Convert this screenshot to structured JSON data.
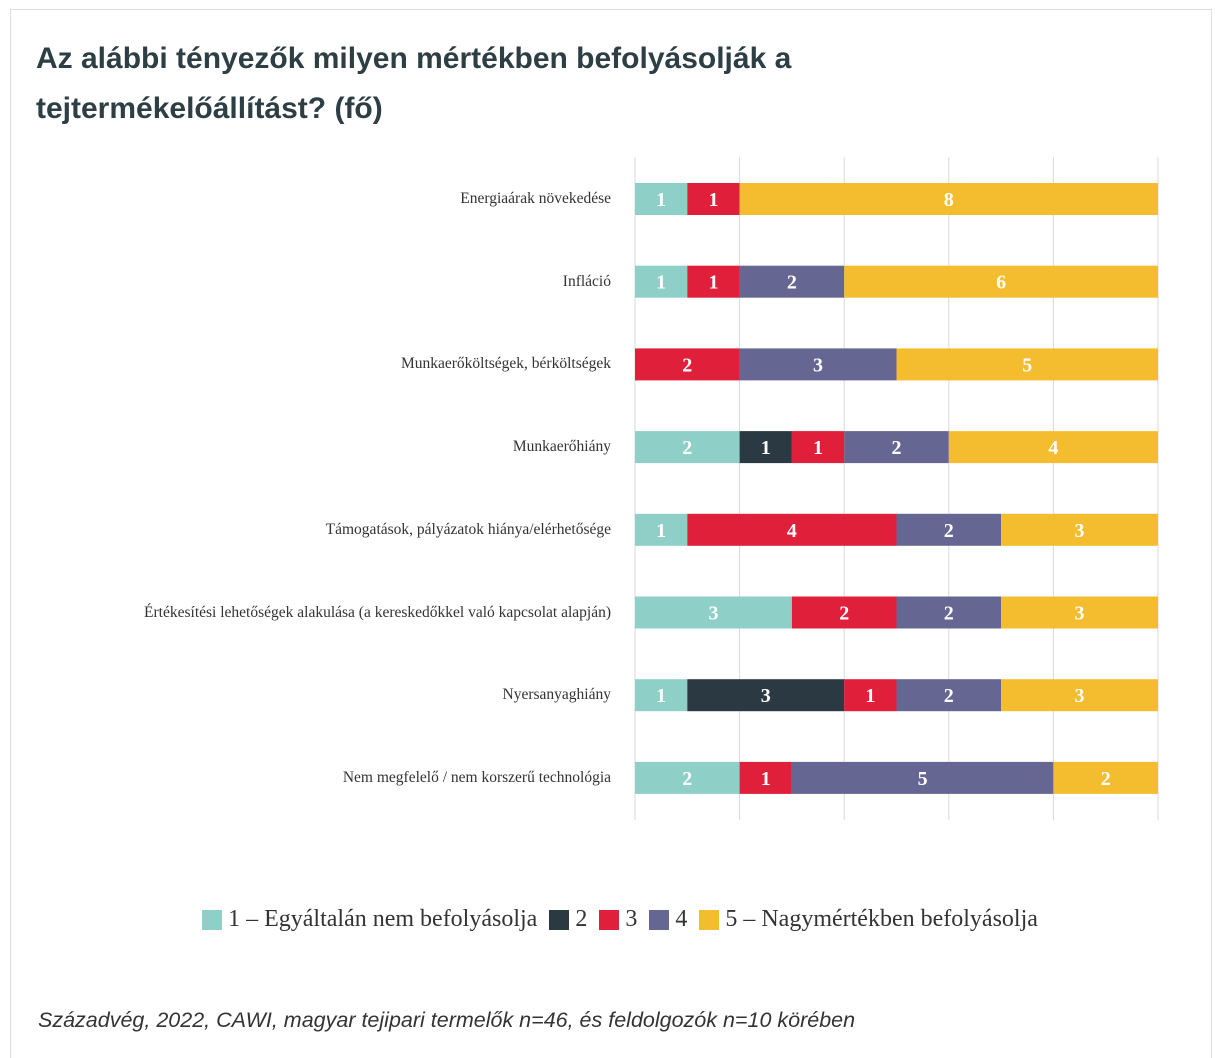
{
  "chart_data": {
    "type": "stacked_barh",
    "title": "Az alábbi tényezők milyen mértékben befolyásolják a tejtermékelőállítást? (fő)",
    "categories": [
      "Energiaárak növekedése",
      "Infláció",
      "Munkaerőköltségek, bérköltségek",
      "Munkaerőhiány",
      "Támogatások, pályázatok hiánya/elérhetősége",
      "Értékesítési lehetőségek alakulása (a kereskedőkkel való kapcsolat alapján)",
      "Nyersanyaghiány",
      "Nem megfelelő / nem korszerű technológia"
    ],
    "series": [
      {
        "name": "1 – Egyáltalán nem befolyásolja",
        "color": "#8ecfc8",
        "values": [
          1,
          1,
          0,
          2,
          1,
          3,
          1,
          2
        ]
      },
      {
        "name": "2",
        "color": "#2b3a42",
        "values": [
          0,
          0,
          0,
          1,
          0,
          0,
          3,
          0
        ]
      },
      {
        "name": "3",
        "color": "#e0203a",
        "values": [
          1,
          1,
          2,
          1,
          4,
          2,
          1,
          1
        ]
      },
      {
        "name": "4",
        "color": "#666693",
        "values": [
          0,
          2,
          3,
          2,
          2,
          2,
          2,
          5
        ]
      },
      {
        "name": "5 – Nagymértékben befolyásolja",
        "color": "#f3bd2f",
        "values": [
          8,
          6,
          5,
          4,
          3,
          3,
          3,
          2
        ]
      }
    ],
    "xlim": [
      0,
      10
    ],
    "xticks": [
      0,
      2,
      4,
      6,
      8,
      10
    ],
    "grid": true,
    "tick_labels": false,
    "legend": "bottom",
    "note": "Századvég, 2022, CAWI, magyar tejipari termelők n=46, és feldolgozók n=10 körében"
  }
}
